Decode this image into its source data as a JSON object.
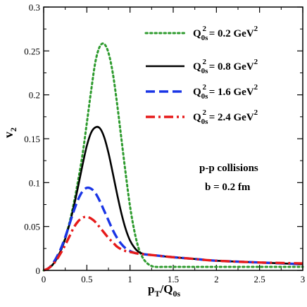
{
  "chart_data": {
    "type": "line",
    "xlabel": {
      "main": "p",
      "sub1": "T",
      "mid": "/Q",
      "sub2": "0s"
    },
    "ylabel": {
      "main": "v",
      "sub": "2"
    },
    "xlim": [
      0,
      3
    ],
    "ylim": [
      0,
      0.3
    ],
    "xticks": [
      0,
      0.5,
      1,
      1.5,
      2,
      2.5,
      3
    ],
    "xtick_labels": [
      "0",
      "0.5",
      "1",
      "1.5",
      "2",
      "2.5",
      "3"
    ],
    "yticks": [
      0,
      0.05,
      0.1,
      0.15,
      0.2,
      0.25,
      0.3
    ],
    "ytick_labels": [
      "0",
      "0.05",
      "0.1",
      "0.15",
      "0.2",
      "0.25",
      "0.3"
    ],
    "grid": false,
    "legend_position": "top-right",
    "annotations": [
      "p-p collisions",
      "b = 0.2 fm"
    ],
    "series": [
      {
        "name": "Q0s² = 0.2 GeV²",
        "legend": {
          "q": "Q",
          "sub": "0s",
          "sup1": "2",
          "rest": " = 0.2 GeV",
          "sup2": "2"
        },
        "color": "#2e9b2e",
        "style": "dotted",
        "x": [
          0,
          0.05,
          0.1,
          0.15,
          0.2,
          0.25,
          0.3,
          0.35,
          0.4,
          0.45,
          0.5,
          0.55,
          0.6,
          0.65,
          0.7,
          0.75,
          0.8,
          0.85,
          0.9,
          0.95,
          1.0,
          1.05,
          1.1,
          1.15,
          1.2,
          1.25,
          1.3,
          1.4,
          1.5,
          1.7,
          2.0,
          2.5,
          3.0
        ],
        "y": [
          0,
          0.002,
          0.006,
          0.013,
          0.023,
          0.037,
          0.055,
          0.077,
          0.103,
          0.132,
          0.168,
          0.205,
          0.238,
          0.255,
          0.258,
          0.248,
          0.225,
          0.19,
          0.15,
          0.11,
          0.073,
          0.045,
          0.025,
          0.014,
          0.008,
          0.005,
          0.004,
          0.004,
          0.004,
          0.004,
          0.004,
          0.004,
          0.004
        ]
      },
      {
        "name": "Q0s² = 0.8 GeV²",
        "legend": {
          "q": "Q",
          "sub": "0s",
          "sup1": "2",
          "rest": " = 0.8 GeV",
          "sup2": "2"
        },
        "color": "#000000",
        "style": "solid",
        "x": [
          0,
          0.05,
          0.1,
          0.15,
          0.2,
          0.25,
          0.3,
          0.35,
          0.4,
          0.45,
          0.5,
          0.55,
          0.6,
          0.65,
          0.7,
          0.75,
          0.8,
          0.85,
          0.9,
          0.95,
          1.0,
          1.05,
          1.1,
          1.15,
          1.2,
          1.3,
          1.5,
          1.75,
          2.0,
          2.5,
          3.0
        ],
        "y": [
          0,
          0.002,
          0.006,
          0.013,
          0.023,
          0.036,
          0.053,
          0.073,
          0.096,
          0.12,
          0.142,
          0.157,
          0.163,
          0.162,
          0.152,
          0.134,
          0.111,
          0.087,
          0.065,
          0.047,
          0.034,
          0.026,
          0.021,
          0.019,
          0.018,
          0.017,
          0.015,
          0.013,
          0.011,
          0.009,
          0.007
        ]
      },
      {
        "name": "Q0s² = 1.6 GeV²",
        "legend": {
          "q": "Q",
          "sub": "0s",
          "sup1": "2",
          "rest": " = 1.6 GeV",
          "sup2": "2"
        },
        "color": "#1a35e6",
        "style": "dashed",
        "x": [
          0,
          0.05,
          0.1,
          0.15,
          0.2,
          0.25,
          0.3,
          0.35,
          0.4,
          0.45,
          0.5,
          0.55,
          0.6,
          0.65,
          0.7,
          0.75,
          0.8,
          0.85,
          0.9,
          0.95,
          1.0,
          1.05,
          1.1,
          1.2,
          1.3,
          1.5,
          1.75,
          2.0,
          2.5,
          3.0
        ],
        "y": [
          0,
          0.002,
          0.007,
          0.015,
          0.025,
          0.038,
          0.053,
          0.068,
          0.081,
          0.09,
          0.094,
          0.093,
          0.088,
          0.079,
          0.068,
          0.057,
          0.046,
          0.037,
          0.03,
          0.025,
          0.022,
          0.02,
          0.019,
          0.018,
          0.017,
          0.015,
          0.013,
          0.011,
          0.009,
          0.007
        ]
      },
      {
        "name": "Q0s² = 2.4 GeV²",
        "legend": {
          "q": "Q",
          "sub": "0s",
          "sup1": "2",
          "rest": " = 2.4 GeV",
          "sup2": "2"
        },
        "color": "#e61a1a",
        "style": "dashdot",
        "x": [
          0,
          0.05,
          0.1,
          0.15,
          0.2,
          0.25,
          0.3,
          0.35,
          0.4,
          0.45,
          0.5,
          0.55,
          0.6,
          0.65,
          0.7,
          0.75,
          0.8,
          0.85,
          0.9,
          0.95,
          1.0,
          1.05,
          1.1,
          1.2,
          1.3,
          1.5,
          1.75,
          2.0,
          2.5,
          3.0
        ],
        "y": [
          0,
          0.002,
          0.006,
          0.012,
          0.02,
          0.029,
          0.039,
          0.049,
          0.056,
          0.06,
          0.061,
          0.059,
          0.055,
          0.049,
          0.043,
          0.037,
          0.032,
          0.027,
          0.024,
          0.022,
          0.021,
          0.02,
          0.019,
          0.018,
          0.017,
          0.015,
          0.013,
          0.011,
          0.009,
          0.008
        ]
      }
    ]
  }
}
